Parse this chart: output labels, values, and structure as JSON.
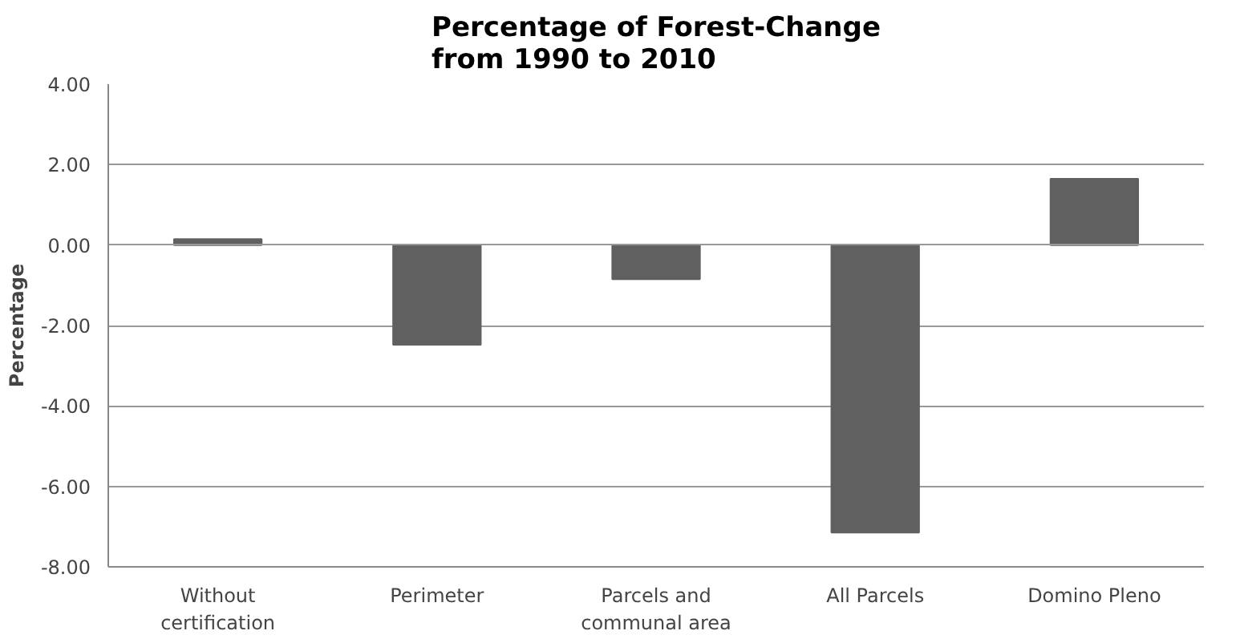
{
  "chart_data": {
    "type": "bar",
    "title": "Percentage of Forest-Change\nfrom 1990 to 2010",
    "ylabel": "Percentage",
    "categories": [
      "Without\ncertification",
      "Perimeter",
      "Parcels and\ncommunal area",
      "All Parcels",
      "Domino Pleno"
    ],
    "values": [
      0.15,
      -2.48,
      -0.85,
      -7.15,
      1.65
    ],
    "color": "#606060",
    "ylim": [
      -8,
      4
    ],
    "yticks": [
      {
        "value": -8,
        "label": "-8.00"
      },
      {
        "value": -6,
        "label": "-6.00"
      },
      {
        "value": -4,
        "label": "-4.00"
      },
      {
        "value": -2,
        "label": "-2.00"
      },
      {
        "value": 0,
        "label": "0.00"
      },
      {
        "value": 2,
        "label": "2.00"
      },
      {
        "value": 4,
        "label": "4.00"
      }
    ],
    "grid": "y"
  }
}
